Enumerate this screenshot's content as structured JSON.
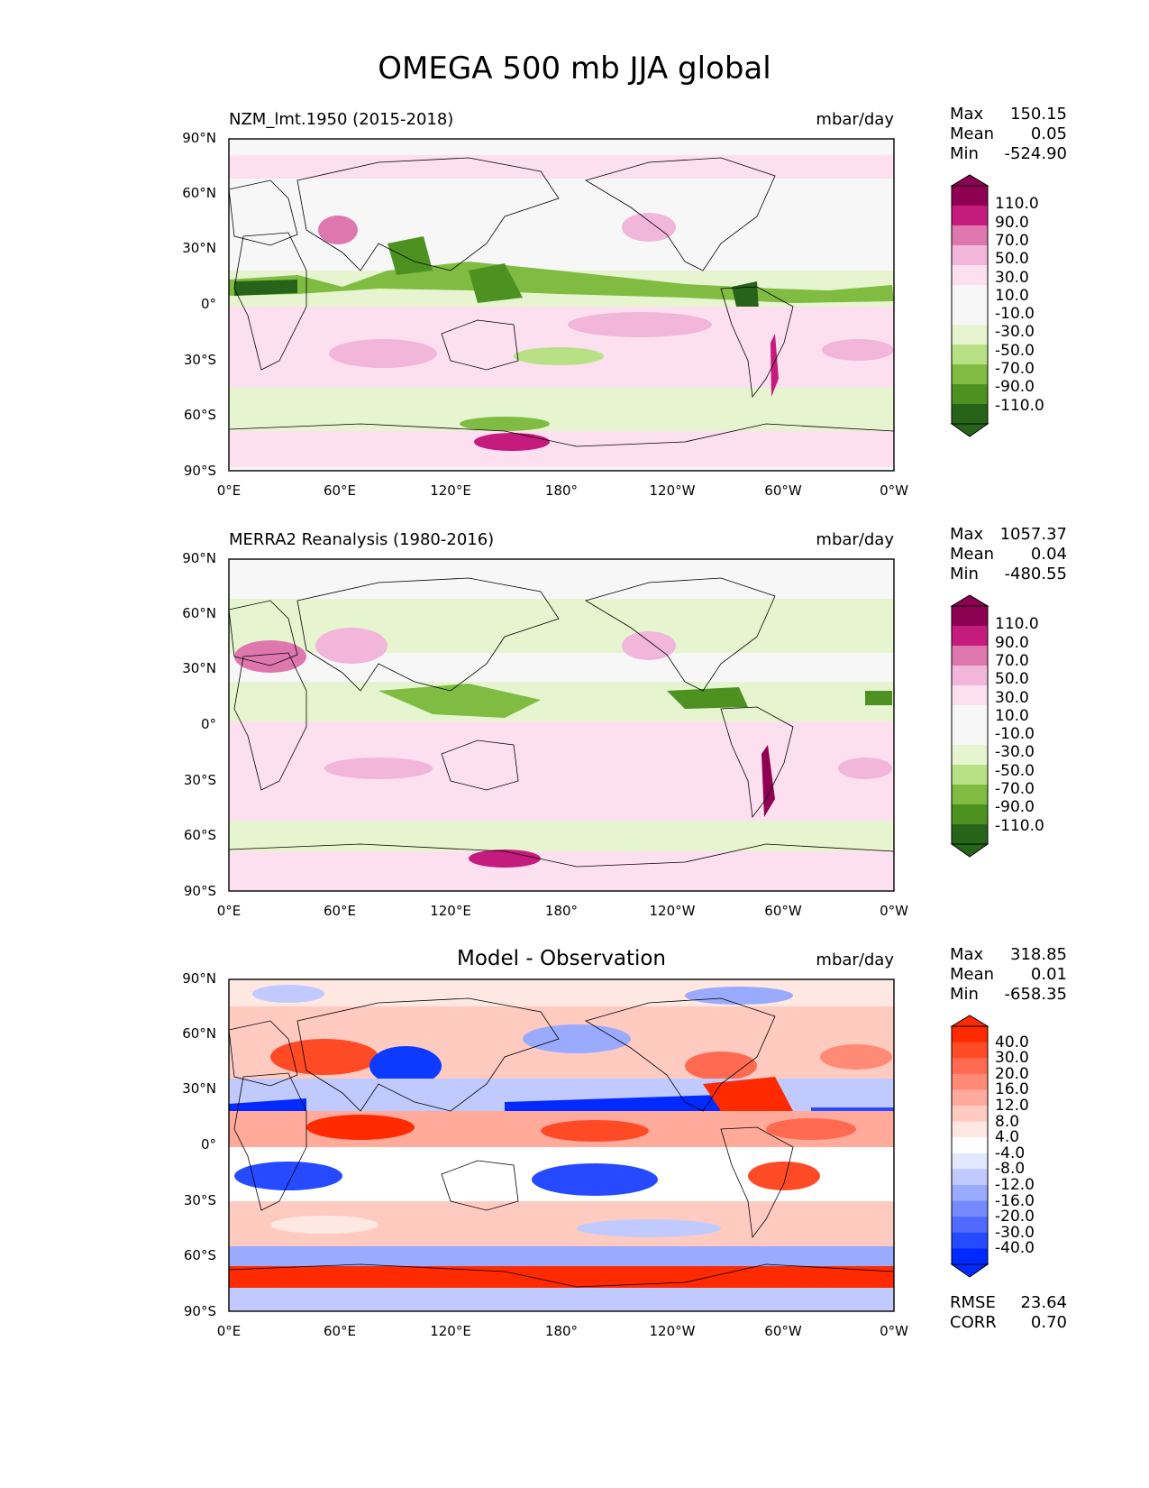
{
  "title": "OMEGA 500 mb JJA global",
  "y_ticks": [
    "90°N",
    "60°N",
    "30°N",
    "0°",
    "30°S",
    "60°S",
    "90°S"
  ],
  "x_ticks": [
    "0°E",
    "60°E",
    "120°E",
    "180°",
    "120°W",
    "60°W",
    "0°W"
  ],
  "panels": [
    {
      "title": "NZM_lmt.1950 (2015-2018)",
      "units": "mbar/day",
      "stats": {
        "max_label": "Max",
        "max": "150.15",
        "mean_label": "Mean",
        "mean": "0.05",
        "min_label": "Min",
        "min": "-524.90"
      },
      "colorbar": [
        "110.0",
        "90.0",
        "70.0",
        "50.0",
        "30.0",
        "10.0",
        "-10.0",
        "-30.0",
        "-50.0",
        "-70.0",
        "-90.0",
        "-110.0"
      ]
    },
    {
      "title": "MERRA2 Reanalysis (1980-2016)",
      "units": "mbar/day",
      "stats": {
        "max_label": "Max",
        "max": "1057.37",
        "mean_label": "Mean",
        "mean": "0.04",
        "min_label": "Min",
        "min": "-480.55"
      },
      "colorbar": [
        "110.0",
        "90.0",
        "70.0",
        "50.0",
        "30.0",
        "10.0",
        "-10.0",
        "-30.0",
        "-50.0",
        "-70.0",
        "-90.0",
        "-110.0"
      ]
    },
    {
      "title": "Model - Observation",
      "units": "mbar/day",
      "stats": {
        "max_label": "Max",
        "max": "318.85",
        "mean_label": "Mean",
        "mean": "0.01",
        "min_label": "Min",
        "min": "-658.35"
      },
      "colorbar": [
        "40.0",
        "30.0",
        "20.0",
        "16.0",
        "12.0",
        "8.0",
        "4.0",
        "-4.0",
        "-8.0",
        "-12.0",
        "-16.0",
        "-20.0",
        "-30.0",
        "-40.0"
      ],
      "rmse_label": "RMSE",
      "rmse": "23.64",
      "corr_label": "CORR",
      "corr": "0.70"
    }
  ],
  "colors": {
    "piyg": [
      "#8e0152",
      "#c51b7d",
      "#de77ae",
      "#f1b6da",
      "#fde0ef",
      "#f7f7f7",
      "#f7f7f7",
      "#e6f5d0",
      "#b8e186",
      "#7fbc41",
      "#4d9221",
      "#276419"
    ],
    "bwr": [
      "#ff2a00",
      "#ff4a26",
      "#ff6a50",
      "#ff8a75",
      "#ffaa9a",
      "#ffcac0",
      "#ffe8e2",
      "#ffffff",
      "#e2e8ff",
      "#c0caff",
      "#9aaaff",
      "#758aff",
      "#506aff",
      "#264aff",
      "#002aff"
    ],
    "land_outline": "#000000"
  }
}
